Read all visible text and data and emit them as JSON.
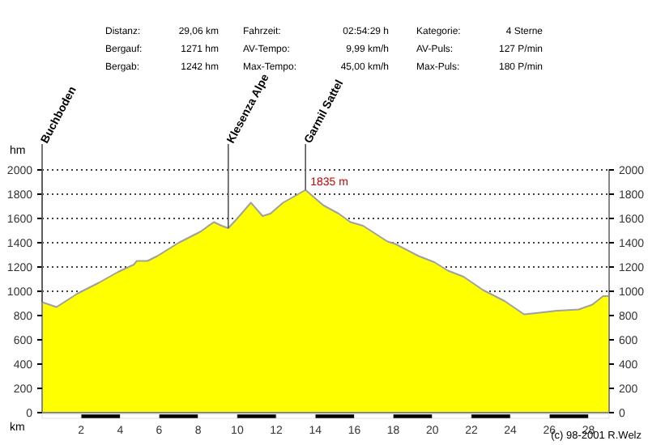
{
  "chart_data": {
    "type": "area",
    "xlabel": "km",
    "ylabel": "hm",
    "x": [
      0,
      0.74,
      1.8,
      2.9,
      3.9,
      4.7,
      4.85,
      5.4,
      5.9,
      7.0,
      8.1,
      8.8,
      9.2,
      9.54,
      10.0,
      10.7,
      11.3,
      11.7,
      12.35,
      13.5,
      14.4,
      15.2,
      15.8,
      16.45,
      17.7,
      18.1,
      19.3,
      20.1,
      20.8,
      21.6,
      22.6,
      23.7,
      24.7,
      25.3,
      26.4,
      27.5,
      28.2,
      28.75,
      29.06
    ],
    "series": [
      {
        "color": "#ffff00",
        "values": [
          910,
          870,
          980,
          1070,
          1160,
          1220,
          1250,
          1250,
          1290,
          1400,
          1490,
          1570,
          1540,
          1520,
          1600,
          1730,
          1620,
          1640,
          1730,
          1835,
          1710,
          1640,
          1570,
          1540,
          1410,
          1390,
          1290,
          1240,
          1170,
          1120,
          1010,
          920,
          810,
          820,
          840,
          850,
          890,
          960,
          960
        ]
      }
    ],
    "xlim": [
      0,
      29.06
    ],
    "xticks": [
      2,
      4,
      6,
      8,
      10,
      12,
      14,
      16,
      18,
      20,
      22,
      24,
      26,
      28
    ],
    "ylim": [
      0,
      2000
    ],
    "yticks": [
      0,
      200,
      400,
      600,
      800,
      1000,
      1200,
      1400,
      1600,
      1800,
      2000
    ],
    "y2lim": [
      0,
      2000
    ],
    "y2ticks": [
      0,
      200,
      400,
      600,
      800,
      1000,
      1200,
      1400,
      1600,
      1800,
      2000
    ],
    "grid": "y",
    "ref_lines": [
      {
        "axis": "x",
        "value": 0,
        "label": "Buchboden"
      },
      {
        "axis": "x",
        "value": 9.54,
        "label": "Klesenza Alpe"
      },
      {
        "axis": "x",
        "value": 13.5,
        "label": "Garmil Sattel"
      }
    ],
    "annotations": [
      {
        "text": "1835 m",
        "x": 13.5,
        "y": 1835
      },
      "Distanz:",
      "29,06 km",
      "Fahrzeit:",
      "02:54:29 h",
      "Kategorie:",
      "4 Sterne",
      "Bergauf:",
      "1271 hm",
      "AV-Tempo:",
      "9,99 km/h",
      "AV-Puls:",
      "127 P/min",
      "Bergab:",
      "1242 hm",
      "Max-Tempo:",
      "45,00 km/h",
      "Max-Puls:",
      "180 P/min",
      "(c) 98-2001 R.Welz"
    ]
  }
}
